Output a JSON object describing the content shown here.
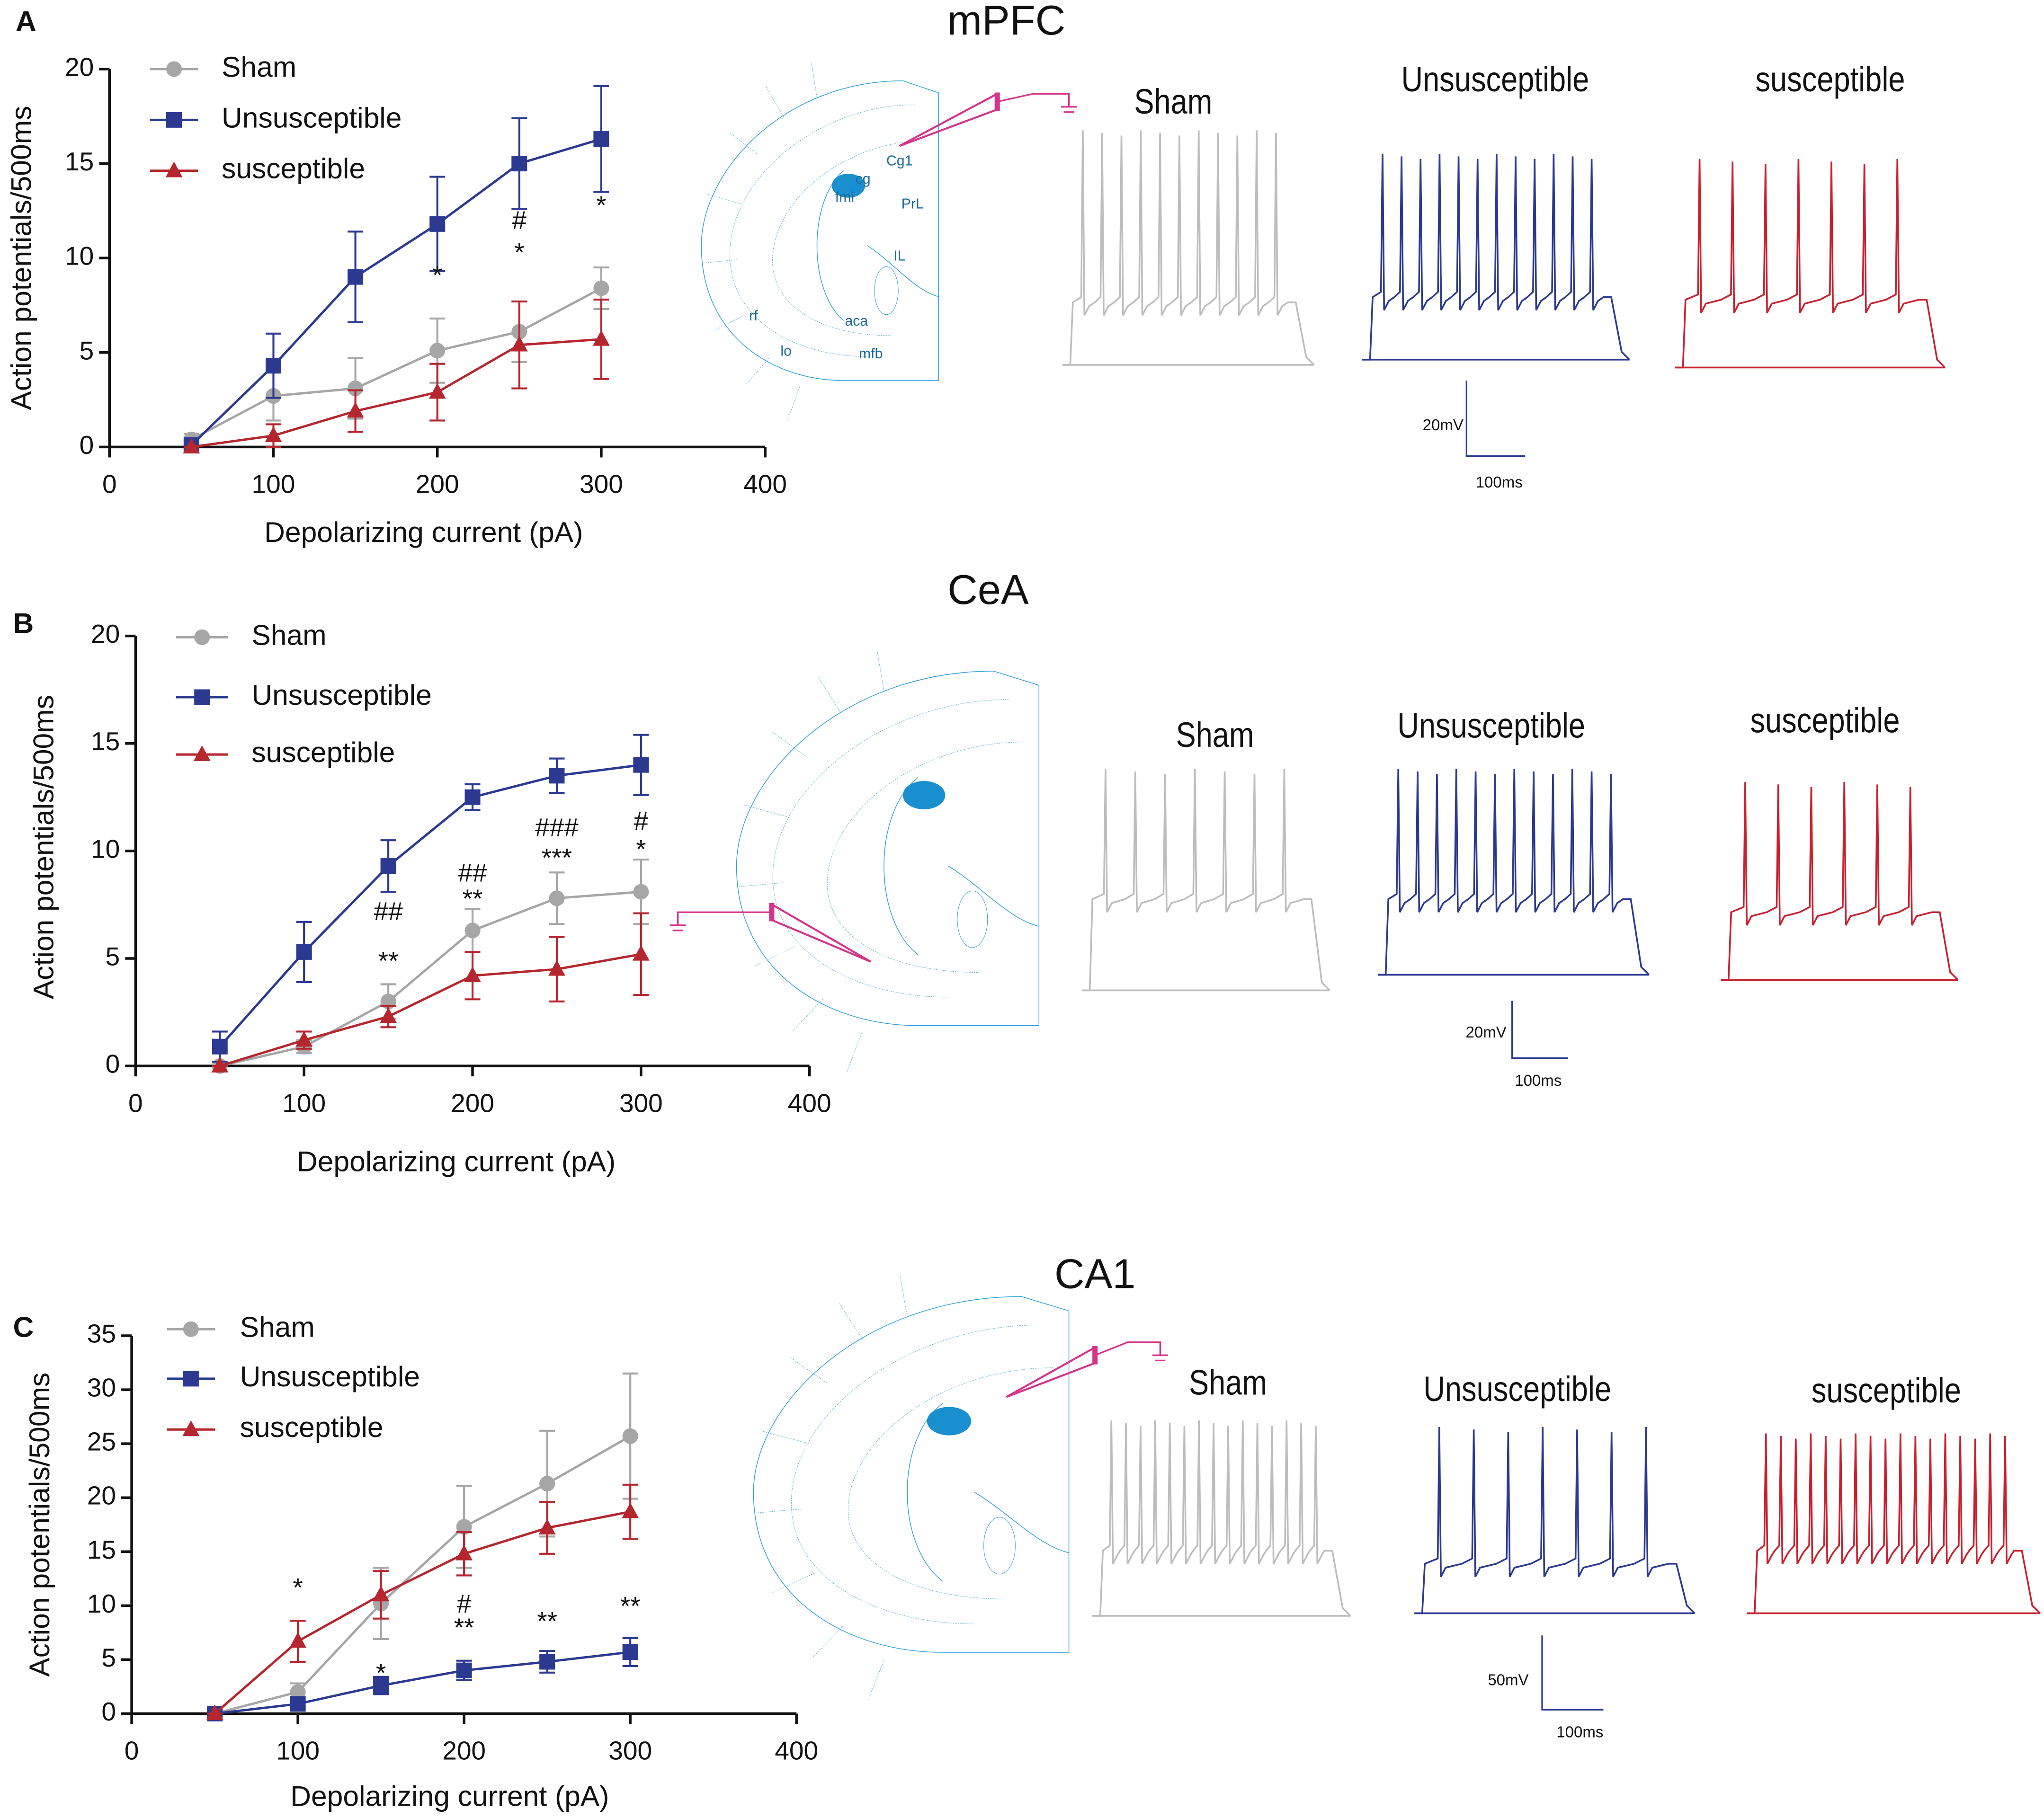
{
  "chart_data": [
    {
      "type": "line",
      "panel": "A",
      "title": "mPFC",
      "xlabel": "Depolarizing current (pA)",
      "ylabel": "Action potentials/500ms",
      "x": [
        50,
        100,
        150,
        200,
        250,
        300
      ],
      "xlim": [
        0,
        400
      ],
      "xticks": [
        0,
        100,
        200,
        300,
        400
      ],
      "ylim": [
        0,
        20
      ],
      "yticks": [
        0,
        5,
        10,
        15,
        20
      ],
      "series": [
        {
          "name": "Sham",
          "color": "#a6a6a6",
          "marker": "circle",
          "values": [
            0.4,
            2.7,
            3.1,
            5.1,
            6.1,
            8.4
          ],
          "errors": [
            0.3,
            1.3,
            1.6,
            1.7,
            1.6,
            1.1
          ]
        },
        {
          "name": "Unsusceptible",
          "color": "#2b3990",
          "marker": "square",
          "values": [
            0.1,
            4.3,
            9.0,
            11.8,
            15.0,
            16.3
          ],
          "errors": [
            0.2,
            1.7,
            2.4,
            2.5,
            2.4,
            2.8
          ]
        },
        {
          "name": "susceptible",
          "color": "#b5262e",
          "marker": "triangle",
          "values": [
            0,
            0.6,
            1.9,
            2.9,
            5.4,
            5.7
          ],
          "errors": [
            0,
            0.6,
            1.1,
            1.5,
            2.3,
            2.1
          ]
        }
      ],
      "annotations": [
        {
          "x": 200,
          "y": 9.0,
          "text": "*"
        },
        {
          "x": 250,
          "y": 11.9,
          "text": "#"
        },
        {
          "x": 250,
          "y": 10.2,
          "text": "*"
        },
        {
          "x": 300,
          "y": 12.7,
          "text": "*"
        }
      ],
      "traces": [
        {
          "label": "Sham",
          "color": "#bdbdbd"
        },
        {
          "label": "Unsusceptible",
          "color": "#2b3990"
        },
        {
          "label": "susceptible",
          "color": "#c8202f"
        }
      ],
      "scale_bar": {
        "voltage": "20mV",
        "time": "100ms"
      },
      "atlas_labels": [
        "Cg1",
        "cg",
        "fmi",
        "PrL",
        "IL",
        "rf",
        "aca",
        "lo",
        "mfb"
      ]
    },
    {
      "type": "line",
      "panel": "B",
      "title": "CeA",
      "xlabel": "Depolarizing current (pA)",
      "ylabel": "Action potentials/500ms",
      "x": [
        50,
        100,
        150,
        200,
        250,
        300
      ],
      "xlim": [
        0,
        400
      ],
      "xticks": [
        0,
        100,
        200,
        300,
        400
      ],
      "ylim": [
        0,
        20
      ],
      "yticks": [
        0,
        5,
        10,
        15,
        20
      ],
      "series": [
        {
          "name": "Sham",
          "color": "#a6a6a6",
          "marker": "circle",
          "values": [
            0,
            0.9,
            3.0,
            6.3,
            7.8,
            8.1
          ],
          "errors": [
            0,
            0.3,
            0.8,
            1.0,
            1.2,
            1.5
          ]
        },
        {
          "name": "Unsusceptible",
          "color": "#2b3990",
          "marker": "square",
          "values": [
            0.9,
            5.3,
            9.3,
            12.5,
            13.5,
            14.0
          ],
          "errors": [
            0.7,
            1.4,
            1.2,
            0.6,
            0.8,
            1.4
          ]
        },
        {
          "name": "susceptible",
          "color": "#b5262e",
          "marker": "triangle",
          "values": [
            0,
            1.2,
            2.3,
            4.2,
            4.5,
            5.2
          ],
          "errors": [
            0,
            0.4,
            0.5,
            1.1,
            1.5,
            1.9
          ]
        }
      ],
      "annotations": [
        {
          "x": 150,
          "y": 7.1,
          "text": "##"
        },
        {
          "x": 150,
          "y": 4.8,
          "text": "**"
        },
        {
          "x": 200,
          "y": 8.9,
          "text": "##"
        },
        {
          "x": 200,
          "y": 7.7,
          "text": "**"
        },
        {
          "x": 250,
          "y": 11.0,
          "text": "###"
        },
        {
          "x": 250,
          "y": 9.6,
          "text": "***"
        },
        {
          "x": 300,
          "y": 11.3,
          "text": "#"
        },
        {
          "x": 300,
          "y": 10.0,
          "text": "*"
        }
      ],
      "traces": [
        {
          "label": "Sham",
          "color": "#bdbdbd"
        },
        {
          "label": "Unsusceptible",
          "color": "#2b3990"
        },
        {
          "label": "susceptible",
          "color": "#c8202f"
        }
      ],
      "scale_bar": {
        "voltage": "20mV",
        "time": "100ms"
      }
    },
    {
      "type": "line",
      "panel": "C",
      "title": "CA1",
      "xlabel": "Depolarizing current (pA)",
      "ylabel": "Action potentials/500ms",
      "x": [
        50,
        100,
        150,
        200,
        250,
        300
      ],
      "xlim": [
        0,
        400
      ],
      "xticks": [
        0,
        100,
        200,
        300,
        400
      ],
      "ylim": [
        0,
        35
      ],
      "yticks": [
        0,
        5,
        10,
        15,
        20,
        25,
        30,
        35
      ],
      "series": [
        {
          "name": "Sham",
          "color": "#a6a6a6",
          "marker": "circle",
          "values": [
            0,
            2.0,
            10.2,
            17.3,
            21.3,
            25.7
          ],
          "errors": [
            0,
            0.8,
            3.3,
            3.8,
            4.9,
            5.8
          ]
        },
        {
          "name": "Unsusceptible",
          "color": "#2b3990",
          "marker": "square",
          "values": [
            0,
            0.9,
            2.6,
            4.0,
            4.8,
            5.7
          ],
          "errors": [
            0,
            0.3,
            0.8,
            0.9,
            1.0,
            1.3
          ]
        },
        {
          "name": "susceptible",
          "color": "#b5262e",
          "marker": "triangle",
          "values": [
            0,
            6.7,
            11.0,
            14.8,
            17.2,
            18.7
          ],
          "errors": [
            0,
            1.9,
            2.2,
            2.0,
            2.4,
            2.5
          ]
        }
      ],
      "annotations": [
        {
          "x": 100,
          "y": 11.5,
          "text": "*"
        },
        {
          "x": 150,
          "y": 3.6,
          "text": "*"
        },
        {
          "x": 200,
          "y": 10.0,
          "text": "#"
        },
        {
          "x": 200,
          "y": 7.8,
          "text": "**"
        },
        {
          "x": 250,
          "y": 8.4,
          "text": "**"
        },
        {
          "x": 300,
          "y": 9.8,
          "text": "**"
        }
      ],
      "traces": [
        {
          "label": "Sham",
          "color": "#bdbdbd"
        },
        {
          "label": "Unsusceptible",
          "color": "#2b3990"
        },
        {
          "label": "susceptible",
          "color": "#c8202f"
        }
      ],
      "scale_bar": {
        "voltage": "50mV",
        "time": "100ms"
      }
    }
  ]
}
